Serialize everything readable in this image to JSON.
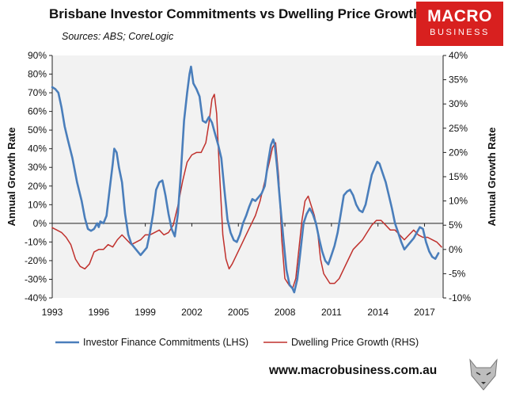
{
  "header": {
    "title": "Brisbane Investor Commitments vs Dwelling Price Growth",
    "sources": "Sources: ABS; CoreLogic"
  },
  "logo": {
    "line1": "MACRO",
    "line2": "BUSINESS",
    "color": "#d8201f"
  },
  "footer": {
    "url": "www.macrobusiness.com.au"
  },
  "chart_data": {
    "type": "line",
    "title": "Brisbane Investor Commitments vs Dwelling Price Growth",
    "xlabel": "",
    "ylabel_left": "Annual Growth Rate",
    "ylabel_right": "Annual Growth Rate",
    "xlim": [
      1993,
      2018.2
    ],
    "x_ticks": [
      1993,
      1996,
      1999,
      2002,
      2005,
      2008,
      2011,
      2014,
      2017
    ],
    "ylim_left": [
      -40,
      90
    ],
    "ylim_right": [
      -10,
      40
    ],
    "y_ticks_left": [
      90,
      80,
      70,
      60,
      50,
      40,
      30,
      20,
      10,
      0,
      -10,
      -20,
      -30,
      -40
    ],
    "y_ticks_right": [
      40,
      35,
      30,
      25,
      20,
      15,
      10,
      5,
      0,
      -5,
      -10
    ],
    "y_tick_labels_left": [
      "90%",
      "80%",
      "70%",
      "60%",
      "50%",
      "40%",
      "30%",
      "20%",
      "10%",
      "0%",
      "-10%",
      "-20%",
      "-30%",
      "-40%"
    ],
    "y_tick_labels_right": [
      "40%",
      "35%",
      "30%",
      "25%",
      "20%",
      "15%",
      "10%",
      "5%",
      "0%",
      "-5%",
      "-10%"
    ],
    "legend_position": "bottom",
    "series": [
      {
        "name": "Investor Finance Commitments (LHS)",
        "axis": "left",
        "color": "#4a7ebb",
        "points": [
          [
            1993.0,
            73
          ],
          [
            1993.2,
            72
          ],
          [
            1993.4,
            70
          ],
          [
            1993.6,
            62
          ],
          [
            1993.8,
            52
          ],
          [
            1994.0,
            45
          ],
          [
            1994.3,
            35
          ],
          [
            1994.6,
            22
          ],
          [
            1994.9,
            12
          ],
          [
            1995.1,
            3
          ],
          [
            1995.3,
            -3
          ],
          [
            1995.5,
            -4
          ],
          [
            1995.7,
            -3
          ],
          [
            1995.9,
            0
          ],
          [
            1996.0,
            -2
          ],
          [
            1996.1,
            1
          ],
          [
            1996.3,
            0
          ],
          [
            1996.5,
            4
          ],
          [
            1996.7,
            18
          ],
          [
            1996.9,
            32
          ],
          [
            1997.0,
            40
          ],
          [
            1997.15,
            38
          ],
          [
            1997.3,
            30
          ],
          [
            1997.5,
            22
          ],
          [
            1997.7,
            5
          ],
          [
            1997.9,
            -6
          ],
          [
            1998.1,
            -11
          ],
          [
            1998.3,
            -13
          ],
          [
            1998.5,
            -15
          ],
          [
            1998.7,
            -17
          ],
          [
            1998.9,
            -15
          ],
          [
            1999.1,
            -13
          ],
          [
            1999.3,
            -5
          ],
          [
            1999.5,
            5
          ],
          [
            1999.7,
            18
          ],
          [
            1999.9,
            22
          ],
          [
            2000.1,
            23
          ],
          [
            2000.3,
            15
          ],
          [
            2000.5,
            5
          ],
          [
            2000.7,
            -3
          ],
          [
            2000.9,
            -7
          ],
          [
            2001.1,
            5
          ],
          [
            2001.3,
            28
          ],
          [
            2001.5,
            55
          ],
          [
            2001.7,
            70
          ],
          [
            2001.85,
            80
          ],
          [
            2001.95,
            84
          ],
          [
            2002.1,
            75
          ],
          [
            2002.3,
            72
          ],
          [
            2002.5,
            68
          ],
          [
            2002.7,
            55
          ],
          [
            2002.9,
            54
          ],
          [
            2003.1,
            57
          ],
          [
            2003.3,
            54
          ],
          [
            2003.5,
            48
          ],
          [
            2003.7,
            42
          ],
          [
            2003.9,
            35
          ],
          [
            2004.1,
            18
          ],
          [
            2004.3,
            2
          ],
          [
            2004.5,
            -5
          ],
          [
            2004.7,
            -9
          ],
          [
            2004.9,
            -10
          ],
          [
            2005.1,
            -6
          ],
          [
            2005.3,
            0
          ],
          [
            2005.5,
            4
          ],
          [
            2005.7,
            9
          ],
          [
            2005.9,
            13
          ],
          [
            2006.1,
            12
          ],
          [
            2006.3,
            14
          ],
          [
            2006.5,
            16
          ],
          [
            2006.7,
            20
          ],
          [
            2006.9,
            32
          ],
          [
            2007.1,
            42
          ],
          [
            2007.25,
            45
          ],
          [
            2007.35,
            42
          ],
          [
            2007.5,
            30
          ],
          [
            2007.7,
            10
          ],
          [
            2007.9,
            -8
          ],
          [
            2008.1,
            -25
          ],
          [
            2008.3,
            -33
          ],
          [
            2008.5,
            -35
          ],
          [
            2008.6,
            -37
          ],
          [
            2008.8,
            -30
          ],
          [
            2009.0,
            -15
          ],
          [
            2009.2,
            0
          ],
          [
            2009.4,
            5
          ],
          [
            2009.6,
            8
          ],
          [
            2009.8,
            5
          ],
          [
            2010.0,
            0
          ],
          [
            2010.2,
            -8
          ],
          [
            2010.4,
            -15
          ],
          [
            2010.6,
            -20
          ],
          [
            2010.8,
            -22
          ],
          [
            2011.0,
            -17
          ],
          [
            2011.2,
            -12
          ],
          [
            2011.4,
            -5
          ],
          [
            2011.6,
            5
          ],
          [
            2011.8,
            15
          ],
          [
            2012.0,
            17
          ],
          [
            2012.2,
            18
          ],
          [
            2012.4,
            15
          ],
          [
            2012.6,
            10
          ],
          [
            2012.8,
            7
          ],
          [
            2013.0,
            6
          ],
          [
            2013.2,
            10
          ],
          [
            2013.4,
            18
          ],
          [
            2013.6,
            26
          ],
          [
            2013.8,
            30
          ],
          [
            2013.95,
            33
          ],
          [
            2014.1,
            32
          ],
          [
            2014.3,
            27
          ],
          [
            2014.5,
            22
          ],
          [
            2014.7,
            15
          ],
          [
            2014.9,
            8
          ],
          [
            2015.1,
            0
          ],
          [
            2015.3,
            -5
          ],
          [
            2015.5,
            -10
          ],
          [
            2015.7,
            -14
          ],
          [
            2015.9,
            -12
          ],
          [
            2016.1,
            -10
          ],
          [
            2016.3,
            -8
          ],
          [
            2016.5,
            -5
          ],
          [
            2016.7,
            -2
          ],
          [
            2016.9,
            -3
          ],
          [
            2017.1,
            -10
          ],
          [
            2017.3,
            -15
          ],
          [
            2017.5,
            -18
          ],
          [
            2017.7,
            -19
          ],
          [
            2017.9,
            -16
          ]
        ]
      },
      {
        "name": "Dwelling Price Growth (RHS)",
        "axis": "right",
        "color": "#c0312d",
        "points": [
          [
            1993.0,
            4.5
          ],
          [
            1993.3,
            4
          ],
          [
            1993.6,
            3.5
          ],
          [
            1993.9,
            2.5
          ],
          [
            1994.2,
            1
          ],
          [
            1994.5,
            -2
          ],
          [
            1994.8,
            -3.5
          ],
          [
            1995.1,
            -4
          ],
          [
            1995.4,
            -3
          ],
          [
            1995.7,
            -0.5
          ],
          [
            1996.0,
            0
          ],
          [
            1996.3,
            0
          ],
          [
            1996.6,
            1
          ],
          [
            1996.9,
            0.5
          ],
          [
            1997.2,
            2
          ],
          [
            1997.5,
            3
          ],
          [
            1997.8,
            2
          ],
          [
            1998.1,
            1
          ],
          [
            1998.4,
            1.5
          ],
          [
            1998.7,
            2
          ],
          [
            1999.0,
            3
          ],
          [
            1999.3,
            3
          ],
          [
            1999.6,
            3.5
          ],
          [
            1999.9,
            4
          ],
          [
            2000.2,
            3
          ],
          [
            2000.5,
            3.5
          ],
          [
            2000.8,
            5
          ],
          [
            2001.1,
            9
          ],
          [
            2001.4,
            14
          ],
          [
            2001.7,
            18
          ],
          [
            2002.0,
            19.5
          ],
          [
            2002.3,
            20
          ],
          [
            2002.6,
            20
          ],
          [
            2002.9,
            22
          ],
          [
            2003.1,
            26
          ],
          [
            2003.3,
            31
          ],
          [
            2003.45,
            32
          ],
          [
            2003.6,
            28
          ],
          [
            2003.8,
            15
          ],
          [
            2004.0,
            3
          ],
          [
            2004.2,
            -2
          ],
          [
            2004.4,
            -4
          ],
          [
            2004.6,
            -3
          ],
          [
            2004.9,
            -1
          ],
          [
            2005.2,
            1
          ],
          [
            2005.5,
            3
          ],
          [
            2005.8,
            5
          ],
          [
            2006.1,
            7
          ],
          [
            2006.4,
            10
          ],
          [
            2006.7,
            14
          ],
          [
            2007.0,
            18
          ],
          [
            2007.2,
            21
          ],
          [
            2007.4,
            22
          ],
          [
            2007.6,
            15
          ],
          [
            2007.8,
            2
          ],
          [
            2008.0,
            -6
          ],
          [
            2008.3,
            -7.5
          ],
          [
            2008.5,
            -8
          ],
          [
            2008.7,
            -6
          ],
          [
            2008.9,
            0
          ],
          [
            2009.1,
            6
          ],
          [
            2009.3,
            10
          ],
          [
            2009.5,
            11
          ],
          [
            2009.7,
            9
          ],
          [
            2009.9,
            7
          ],
          [
            2010.1,
            4
          ],
          [
            2010.3,
            -2
          ],
          [
            2010.5,
            -5
          ],
          [
            2010.7,
            -6
          ],
          [
            2010.9,
            -7
          ],
          [
            2011.2,
            -7
          ],
          [
            2011.5,
            -6
          ],
          [
            2011.8,
            -4
          ],
          [
            2012.1,
            -2
          ],
          [
            2012.4,
            0
          ],
          [
            2012.7,
            1
          ],
          [
            2013.0,
            2
          ],
          [
            2013.3,
            3.5
          ],
          [
            2013.6,
            5
          ],
          [
            2013.9,
            6
          ],
          [
            2014.2,
            6
          ],
          [
            2014.5,
            5
          ],
          [
            2014.8,
            4
          ],
          [
            2015.1,
            4
          ],
          [
            2015.4,
            3
          ],
          [
            2015.7,
            2
          ],
          [
            2016.0,
            3
          ],
          [
            2016.3,
            4
          ],
          [
            2016.6,
            3
          ],
          [
            2016.9,
            2.5
          ],
          [
            2017.2,
            2.5
          ],
          [
            2017.5,
            2
          ],
          [
            2017.8,
            1.5
          ],
          [
            2018.1,
            0.5
          ]
        ]
      }
    ]
  }
}
